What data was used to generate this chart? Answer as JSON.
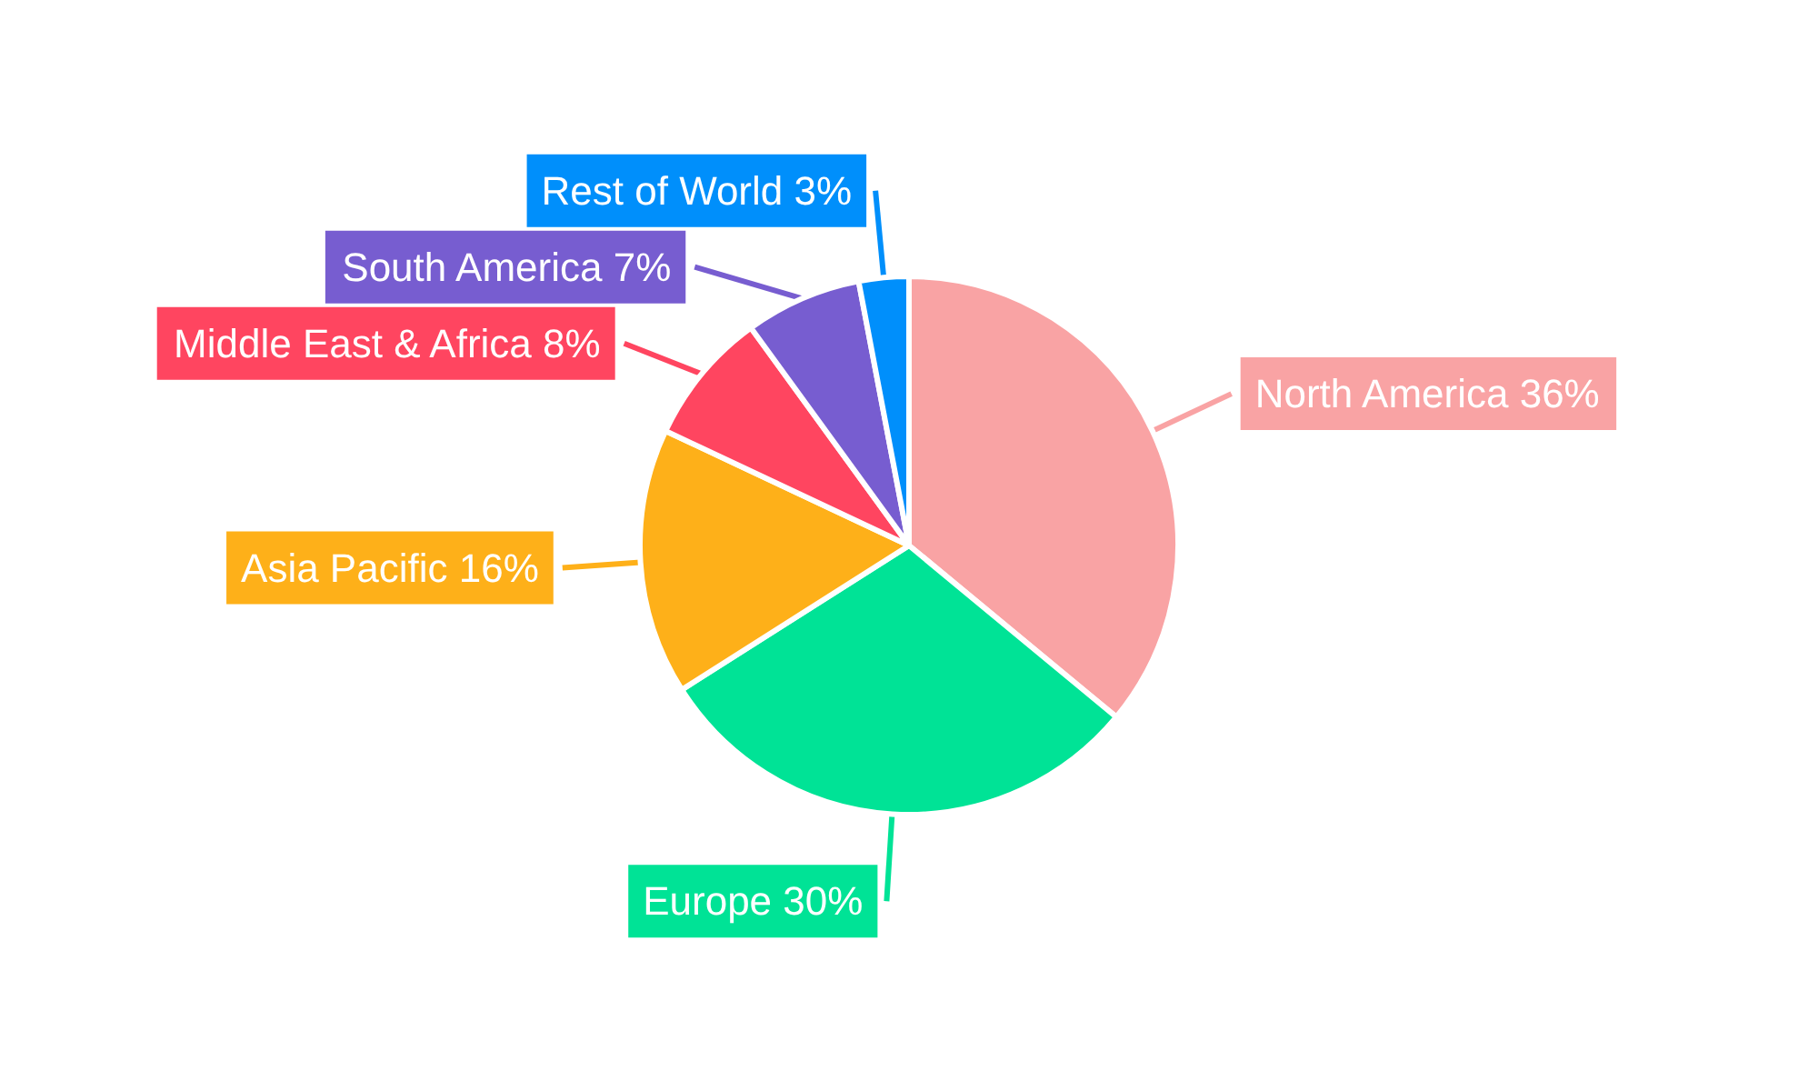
{
  "chart_data": {
    "type": "pie",
    "categories": [
      "North America",
      "Europe",
      "Asia Pacific",
      "Middle East & Africa",
      "South America",
      "Rest of World"
    ],
    "values": [
      36,
      30,
      16,
      8,
      7,
      3
    ],
    "value_labels": [
      "36%",
      "30%",
      "16%",
      "8%",
      "7%",
      "3%"
    ],
    "colors": [
      "#f9a3a4",
      "#00e396",
      "#feb019",
      "#ff4560",
      "#775dd0",
      "#008ffb"
    ],
    "legend": false
  }
}
